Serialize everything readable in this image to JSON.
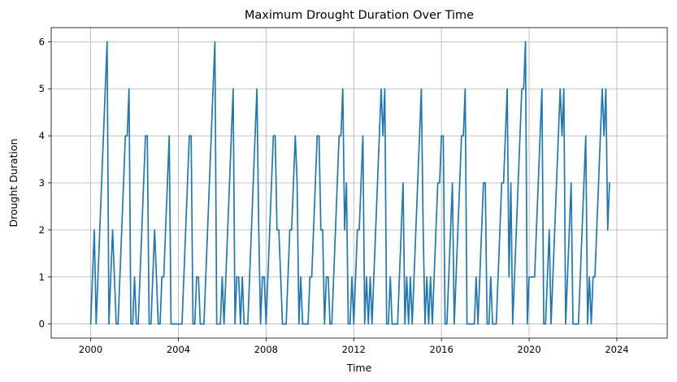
{
  "chart_data": {
    "type": "line",
    "title": "Maximum Drought Duration Over Time",
    "xlabel": "Time",
    "ylabel": "Drought Duration",
    "xlim": [
      1998.2,
      2026.3
    ],
    "ylim": [
      -0.3,
      6.3
    ],
    "grid": true,
    "legend": "none",
    "x_ticks": [
      {
        "value": 2000,
        "label": "2000"
      },
      {
        "value": 2004,
        "label": "2004"
      },
      {
        "value": 2008,
        "label": "2008"
      },
      {
        "value": 2012,
        "label": "2012"
      },
      {
        "value": 2016,
        "label": "2016"
      },
      {
        "value": 2020,
        "label": "2020"
      },
      {
        "value": 2024,
        "label": "2024"
      }
    ],
    "y_ticks": [
      {
        "value": 0,
        "label": "0"
      },
      {
        "value": 1,
        "label": "1"
      },
      {
        "value": 2,
        "label": "2"
      },
      {
        "value": 3,
        "label": "3"
      },
      {
        "value": 4,
        "label": "4"
      },
      {
        "value": 5,
        "label": "5"
      },
      {
        "value": 6,
        "label": "6"
      }
    ],
    "series": [
      {
        "color": "#1f77b4",
        "start": "2000-01",
        "interval": "month",
        "values": [
          0,
          1,
          2,
          0,
          1,
          2,
          3,
          4,
          5,
          6,
          0,
          1,
          2,
          1,
          0,
          0,
          1,
          2,
          3,
          4,
          4,
          5,
          0,
          0,
          1,
          0,
          0,
          1,
          2,
          3,
          4,
          4,
          0,
          0,
          1,
          2,
          1,
          0,
          0,
          1,
          1,
          2,
          3,
          4,
          0,
          0,
          0,
          0,
          0,
          0,
          0,
          1,
          2,
          3,
          4,
          4,
          0,
          0,
          1,
          1,
          0,
          0,
          0,
          1,
          2,
          3,
          4,
          5,
          6,
          0,
          0,
          0,
          1,
          0,
          1,
          2,
          3,
          4,
          5,
          0,
          1,
          1,
          0,
          1,
          0,
          0,
          0,
          1,
          2,
          3,
          4,
          5,
          2,
          0,
          1,
          1,
          0,
          1,
          2,
          3,
          4,
          4,
          2,
          2,
          1,
          0,
          0,
          0,
          1,
          2,
          2,
          3,
          4,
          3,
          0,
          1,
          0,
          0,
          0,
          0,
          1,
          1,
          2,
          3,
          4,
          4,
          2,
          2,
          0,
          1,
          1,
          0,
          0,
          1,
          2,
          3,
          4,
          4,
          5,
          2,
          3,
          0,
          0,
          1,
          0,
          1,
          2,
          2,
          3,
          4,
          0,
          1,
          0,
          1,
          0,
          1,
          2,
          3,
          4,
          5,
          4,
          5,
          0,
          0,
          1,
          0,
          0,
          0,
          0,
          1,
          2,
          3,
          0,
          1,
          0,
          1,
          0,
          1,
          2,
          3,
          4,
          5,
          2,
          0,
          1,
          0,
          1,
          0,
          1,
          2,
          3,
          3,
          4,
          4,
          0,
          0,
          1,
          2,
          3,
          0,
          1,
          2,
          3,
          4,
          4,
          5,
          0,
          0,
          0,
          0,
          0,
          1,
          0,
          1,
          2,
          3,
          3,
          0,
          0,
          1,
          0,
          0,
          0,
          1,
          2,
          3,
          3,
          4,
          5,
          1,
          3,
          0,
          1,
          2,
          3,
          4,
          5,
          5,
          6,
          0,
          1,
          1,
          1,
          1,
          2,
          3,
          4,
          5,
          0,
          0,
          1,
          2,
          0,
          1,
          2,
          3,
          4,
          5,
          4,
          5,
          0,
          1,
          2,
          3,
          0,
          0,
          0,
          0,
          1,
          2,
          3,
          4,
          0,
          1,
          0,
          1,
          1,
          2,
          3,
          4,
          5,
          4,
          5,
          2,
          3
        ]
      }
    ]
  }
}
